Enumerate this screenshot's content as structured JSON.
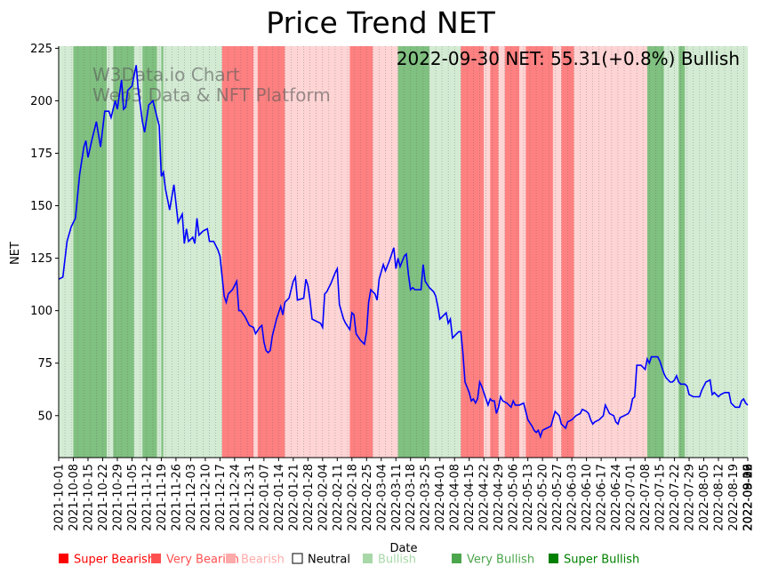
{
  "chart_data": {
    "type": "line",
    "title": "Price Trend NET",
    "annotation": "2022-09-30 NET: 55.31(+0.8%) Bullish",
    "watermark_lines": [
      "W3Data.io Chart",
      "Web3 Data & NFT Platform"
    ],
    "xlabel": "Date",
    "ylabel": "NET",
    "ylim": [
      30,
      226
    ],
    "yticks": [
      50,
      75,
      100,
      125,
      150,
      175,
      200,
      225
    ],
    "x_start": "2021-10-01",
    "x_end": "2022-09-30",
    "xtick_labels": [
      "2021-10-01",
      "2021-10-08",
      "2021-10-15",
      "2021-10-22",
      "2021-10-29",
      "2021-11-05",
      "2021-11-12",
      "2021-11-19",
      "2021-11-26",
      "2021-12-03",
      "2021-12-10",
      "2021-12-17",
      "2021-12-24",
      "2021-12-31",
      "2022-01-07",
      "2022-01-14",
      "2022-01-21",
      "2022-01-28",
      "2022-02-04",
      "2022-02-11",
      "2022-02-18",
      "2022-02-25",
      "2022-03-04",
      "2022-03-11",
      "2022-03-18",
      "2022-03-25",
      "2022-04-01",
      "2022-04-08",
      "2022-04-15",
      "2022-04-22",
      "2022-04-29",
      "2022-05-06",
      "2022-05-13",
      "2022-05-20",
      "2022-05-27",
      "2022-06-03",
      "2022-06-10",
      "2022-06-17",
      "2022-06-24",
      "2022-07-01",
      "2022-07-08",
      "2022-07-15",
      "2022-07-22",
      "2022-07-29",
      "2022-08-05",
      "2022-08-12",
      "2022-08-19",
      "2022-08-26",
      "2022-09-02",
      "2022-09-09",
      "2022-09-16",
      "2022-09-23",
      "2022-09-30"
    ],
    "series": [
      {
        "name": "NET",
        "color": "#0000ff",
        "values": [
          [
            0,
            115
          ],
          [
            2,
            116
          ],
          [
            4,
            133
          ],
          [
            6,
            140
          ],
          [
            8,
            144
          ],
          [
            10,
            165
          ],
          [
            12,
            178
          ],
          [
            13,
            181
          ],
          [
            14,
            173
          ],
          [
            16,
            182
          ],
          [
            18,
            190
          ],
          [
            20,
            178
          ],
          [
            22,
            195
          ],
          [
            24,
            195
          ],
          [
            25,
            192
          ],
          [
            27,
            200
          ],
          [
            28,
            196
          ],
          [
            30,
            210
          ],
          [
            31,
            196
          ],
          [
            32,
            197
          ],
          [
            33,
            205
          ],
          [
            35,
            207
          ],
          [
            37,
            217
          ],
          [
            38,
            205
          ],
          [
            40,
            190
          ],
          [
            41,
            185
          ],
          [
            43,
            198
          ],
          [
            45,
            200
          ],
          [
            47,
            192
          ],
          [
            48,
            188
          ],
          [
            49,
            164
          ],
          [
            50,
            166
          ],
          [
            51,
            158
          ],
          [
            53,
            148
          ],
          [
            55,
            160
          ],
          [
            57,
            142
          ],
          [
            59,
            146
          ],
          [
            60,
            132
          ],
          [
            61,
            139
          ],
          [
            62,
            133
          ],
          [
            64,
            135
          ],
          [
            65,
            132
          ],
          [
            66,
            144
          ],
          [
            67,
            136
          ],
          [
            69,
            138
          ],
          [
            71,
            139
          ],
          [
            72,
            133
          ],
          [
            74,
            133
          ],
          [
            76,
            129
          ],
          [
            77,
            126
          ],
          [
            79,
            107
          ],
          [
            80,
            104
          ],
          [
            81,
            108
          ],
          [
            83,
            110
          ],
          [
            85,
            114
          ],
          [
            86,
            100
          ],
          [
            87,
            100
          ],
          [
            89,
            97
          ],
          [
            91,
            93
          ],
          [
            93,
            92
          ],
          [
            94,
            89
          ],
          [
            96,
            92
          ],
          [
            97,
            93
          ],
          [
            98,
            85
          ],
          [
            99,
            81
          ],
          [
            100,
            80
          ],
          [
            101,
            81
          ],
          [
            102,
            88
          ],
          [
            104,
            96
          ],
          [
            106,
            102
          ],
          [
            107,
            98
          ],
          [
            108,
            104
          ],
          [
            110,
            106
          ],
          [
            112,
            114
          ],
          [
            113,
            116
          ],
          [
            114,
            105
          ],
          [
            117,
            106
          ],
          [
            118,
            115
          ],
          [
            119,
            112
          ],
          [
            120,
            105
          ],
          [
            121,
            96
          ],
          [
            123,
            95
          ],
          [
            125,
            94
          ],
          [
            126,
            92
          ],
          [
            127,
            108
          ],
          [
            128,
            109
          ],
          [
            130,
            113
          ],
          [
            132,
            118
          ],
          [
            133,
            120
          ],
          [
            134,
            103
          ],
          [
            136,
            96
          ],
          [
            137,
            94
          ],
          [
            139,
            91
          ],
          [
            140,
            99
          ],
          [
            141,
            98
          ],
          [
            142,
            89
          ],
          [
            144,
            86
          ],
          [
            146,
            84
          ],
          [
            147,
            90
          ],
          [
            148,
            104
          ],
          [
            149,
            110
          ],
          [
            151,
            108
          ],
          [
            152,
            105
          ],
          [
            153,
            115
          ],
          [
            155,
            122
          ],
          [
            156,
            119
          ],
          [
            158,
            124
          ],
          [
            160,
            130
          ],
          [
            161,
            120
          ],
          [
            162,
            125
          ],
          [
            163,
            121
          ],
          [
            165,
            126
          ],
          [
            166,
            127
          ],
          [
            167,
            117
          ],
          [
            168,
            110
          ],
          [
            169,
            111
          ],
          [
            170,
            110
          ],
          [
            172,
            110
          ],
          [
            173,
            110
          ],
          [
            174,
            122
          ],
          [
            175,
            114
          ],
          [
            177,
            111
          ],
          [
            179,
            109
          ],
          [
            180,
            107
          ],
          [
            181,
            102
          ],
          [
            182,
            96
          ],
          [
            185,
            99
          ],
          [
            186,
            94
          ],
          [
            187,
            96
          ],
          [
            188,
            87
          ],
          [
            190,
            89
          ],
          [
            191,
            90
          ],
          [
            192,
            90
          ],
          [
            193,
            80
          ],
          [
            194,
            66
          ],
          [
            196,
            61
          ],
          [
            197,
            57
          ],
          [
            198,
            58
          ],
          [
            199,
            56
          ],
          [
            200,
            58
          ],
          [
            201,
            66
          ],
          [
            202,
            64
          ],
          [
            204,
            58
          ],
          [
            205,
            55
          ],
          [
            206,
            58
          ],
          [
            207,
            57
          ],
          [
            208,
            57
          ],
          [
            209,
            51
          ],
          [
            210,
            54
          ],
          [
            211,
            59
          ],
          [
            212,
            57
          ],
          [
            214,
            56
          ],
          [
            216,
            54
          ],
          [
            217,
            57
          ],
          [
            218,
            55
          ],
          [
            220,
            55
          ],
          [
            222,
            56
          ],
          [
            223,
            52
          ],
          [
            224,
            48
          ],
          [
            226,
            45
          ],
          [
            227,
            43
          ],
          [
            228,
            42
          ],
          [
            229,
            43
          ],
          [
            230,
            40
          ],
          [
            231,
            43
          ],
          [
            233,
            44
          ],
          [
            235,
            45
          ],
          [
            237,
            52
          ],
          [
            238,
            51
          ],
          [
            239,
            50
          ],
          [
            240,
            46
          ],
          [
            241,
            45
          ],
          [
            242,
            44
          ],
          [
            243,
            47
          ],
          [
            245,
            48
          ],
          [
            247,
            50
          ],
          [
            249,
            51
          ],
          [
            250,
            53
          ],
          [
            252,
            52
          ],
          [
            253,
            51
          ],
          [
            254,
            48
          ],
          [
            255,
            46
          ],
          [
            256,
            47
          ],
          [
            258,
            48
          ],
          [
            260,
            50
          ],
          [
            261,
            55
          ],
          [
            262,
            53
          ],
          [
            263,
            51
          ],
          [
            265,
            50
          ],
          [
            266,
            47
          ],
          [
            267,
            46
          ],
          [
            268,
            49
          ],
          [
            270,
            50
          ],
          [
            272,
            51
          ],
          [
            273,
            53
          ],
          [
            274,
            58
          ],
          [
            275,
            59
          ],
          [
            276,
            74
          ],
          [
            278,
            74
          ],
          [
            280,
            72
          ],
          [
            281,
            77
          ],
          [
            282,
            75
          ],
          [
            283,
            78
          ],
          [
            285,
            78
          ],
          [
            286,
            78
          ],
          [
            287,
            76
          ],
          [
            288,
            73
          ],
          [
            289,
            70
          ],
          [
            290,
            68
          ],
          [
            292,
            66
          ],
          [
            293,
            66
          ],
          [
            294,
            67
          ],
          [
            295,
            69
          ],
          [
            296,
            66
          ],
          [
            297,
            65
          ],
          [
            299,
            65
          ],
          [
            300,
            64
          ],
          [
            301,
            60
          ],
          [
            303,
            59
          ],
          [
            306,
            59
          ],
          [
            307,
            62
          ],
          [
            308,
            64
          ],
          [
            309,
            66
          ],
          [
            311,
            67
          ],
          [
            312,
            60
          ],
          [
            313,
            61
          ],
          [
            315,
            59
          ],
          [
            316,
            60
          ],
          [
            318,
            61
          ],
          [
            320,
            61
          ],
          [
            321,
            56
          ],
          [
            323,
            54
          ],
          [
            325,
            54
          ],
          [
            326,
            57
          ],
          [
            327,
            58
          ],
          [
            328,
            56
          ],
          [
            329,
            55
          ]
        ]
      }
    ],
    "regime_bands": [
      {
        "start": 0,
        "end": 7,
        "class": "Bullish"
      },
      {
        "start": 7,
        "end": 23,
        "class": "Very Bullish"
      },
      {
        "start": 23,
        "end": 26,
        "class": "Bullish"
      },
      {
        "start": 26,
        "end": 36,
        "class": "Very Bullish"
      },
      {
        "start": 36,
        "end": 40,
        "class": "Bullish"
      },
      {
        "start": 40,
        "end": 47,
        "class": "Very Bullish"
      },
      {
        "start": 47,
        "end": 49,
        "class": "Bullish"
      },
      {
        "start": 49,
        "end": 50,
        "class": "Very Bullish"
      },
      {
        "start": 50,
        "end": 78,
        "class": "Bullish"
      },
      {
        "start": 78,
        "end": 93,
        "class": "Very Bearish"
      },
      {
        "start": 93,
        "end": 95,
        "class": "Bearish"
      },
      {
        "start": 95,
        "end": 108,
        "class": "Very Bearish"
      },
      {
        "start": 108,
        "end": 116,
        "class": "Bearish"
      },
      {
        "start": 116,
        "end": 139,
        "class": "Bearish"
      },
      {
        "start": 139,
        "end": 150,
        "class": "Very Bearish"
      },
      {
        "start": 150,
        "end": 162,
        "class": "Bearish"
      },
      {
        "start": 162,
        "end": 177,
        "class": "Very Bullish"
      },
      {
        "start": 177,
        "end": 192,
        "class": "Bullish"
      },
      {
        "start": 192,
        "end": 203,
        "class": "Very Bearish"
      },
      {
        "start": 203,
        "end": 206,
        "class": "Bearish"
      },
      {
        "start": 206,
        "end": 210,
        "class": "Very Bearish"
      },
      {
        "start": 210,
        "end": 213,
        "class": "Bearish"
      },
      {
        "start": 213,
        "end": 220,
        "class": "Very Bearish"
      },
      {
        "start": 220,
        "end": 223,
        "class": "Bearish"
      },
      {
        "start": 223,
        "end": 236,
        "class": "Very Bearish"
      },
      {
        "start": 236,
        "end": 240,
        "class": "Bearish"
      },
      {
        "start": 240,
        "end": 246,
        "class": "Very Bearish"
      },
      {
        "start": 246,
        "end": 281,
        "class": "Bearish"
      },
      {
        "start": 281,
        "end": 289,
        "class": "Very Bullish"
      },
      {
        "start": 289,
        "end": 296,
        "class": "Bullish"
      },
      {
        "start": 296,
        "end": 299,
        "class": "Very Bullish"
      },
      {
        "start": 299,
        "end": 329,
        "class": "Bullish"
      }
    ],
    "legend": [
      {
        "label": "Super Bearish",
        "color": "#ff0000"
      },
      {
        "label": "Very Bearish",
        "color": "#ff5050"
      },
      {
        "label": "Bearish",
        "color": "#ffaaaa"
      },
      {
        "label": "Neutral",
        "color": "#000000"
      },
      {
        "label": "Bullish",
        "color": "#a8d8a8"
      },
      {
        "label": "Very Bullish",
        "color": "#4ca64c"
      },
      {
        "label": "Super Bullish",
        "color": "#008000"
      }
    ],
    "band_colors": {
      "Super Bearish": "#ff0000",
      "Very Bearish": "#ff8080",
      "Bearish": "#ffd4d4",
      "Neutral": "#ffffff",
      "Bullish": "#d3ebd3",
      "Very Bullish": "#80c080",
      "Super Bullish": "#008000"
    },
    "legend_position": "bottom"
  }
}
